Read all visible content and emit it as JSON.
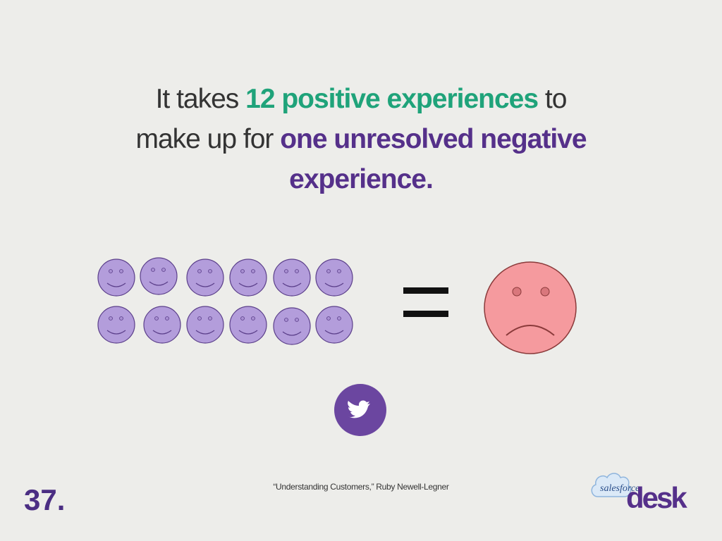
{
  "headline": {
    "segments": [
      {
        "text": "It takes ",
        "color": "#333333",
        "bold": false
      },
      {
        "text": "12 positive experiences",
        "color": "#1fa37a",
        "bold": true
      },
      {
        "text": " to",
        "color": "#333333",
        "bold": false
      },
      {
        "text": "make up for ",
        "color": "#333333",
        "bold": false
      },
      {
        "text": "one unresolved negative",
        "color": "#55308a",
        "bold": true
      },
      {
        "text": "experience.",
        "color": "#55308a",
        "bold": true
      }
    ]
  },
  "citation": "“Understanding Customers,” Ruby Newell-Legner",
  "slide_number": "37.",
  "logo": {
    "brand": "salesforce",
    "product": "desk"
  }
}
